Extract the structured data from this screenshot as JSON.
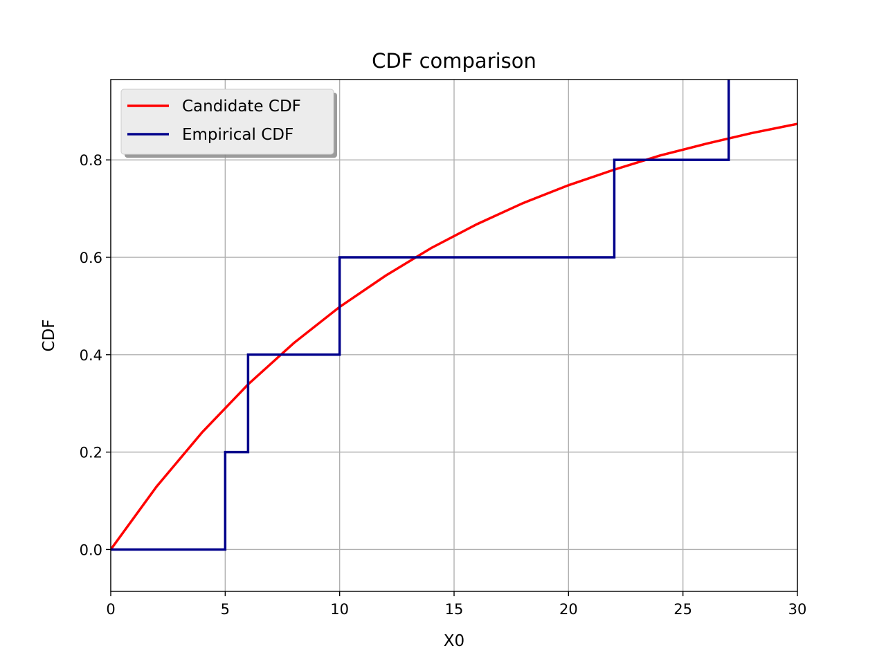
{
  "chart_data": {
    "type": "line",
    "title": "CDF comparison",
    "xlabel": "X0",
    "ylabel": "CDF",
    "xlim": [
      0,
      30
    ],
    "ylim": [
      -0.086,
      0.965
    ],
    "xticks": [
      0,
      5,
      10,
      15,
      20,
      25,
      30
    ],
    "yticks": [
      0.0,
      0.2,
      0.4,
      0.6,
      0.8
    ],
    "x_tick_labels": [
      "0",
      "5",
      "10",
      "15",
      "20",
      "25",
      "30"
    ],
    "y_tick_labels": [
      "0.0",
      "0.2",
      "0.4",
      "0.6",
      "0.8"
    ],
    "grid": true,
    "legend_position": "top-left",
    "series": [
      {
        "name": "Candidate CDF",
        "color": "#ff0000",
        "kind": "curve",
        "x": [
          0,
          2,
          4,
          6,
          8,
          10,
          12,
          14,
          16,
          18,
          20,
          22,
          24,
          26,
          28,
          30
        ],
        "y": [
          0.0,
          0.129,
          0.241,
          0.339,
          0.424,
          0.498,
          0.562,
          0.619,
          0.668,
          0.711,
          0.748,
          0.78,
          0.809,
          0.833,
          0.855,
          0.874
        ]
      },
      {
        "name": "Empirical CDF",
        "color": "#00008b",
        "kind": "step",
        "x": [
          0,
          5,
          6,
          10,
          22,
          27
        ],
        "y": [
          0.0,
          0.2,
          0.4,
          0.6,
          0.8,
          1.0
        ]
      }
    ]
  }
}
